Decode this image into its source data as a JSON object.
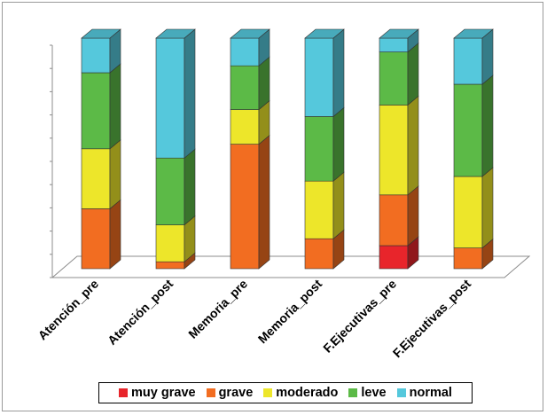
{
  "chart_data": {
    "type": "bar",
    "stacked": true,
    "percent_stacked": true,
    "three_d": true,
    "categories": [
      "Atención_pre",
      "Atención_post",
      "Memoria_pre",
      "Memoria_post",
      "F.Ejecutivas_pre",
      "F.Ejecutivas_post"
    ],
    "series": [
      {
        "name": "muy grave",
        "color": "#e8252b",
        "values": [
          0,
          0,
          0,
          0,
          10,
          0
        ]
      },
      {
        "name": "grave",
        "color": "#f26d21",
        "values": [
          26,
          3,
          54,
          13,
          22,
          9
        ]
      },
      {
        "name": "moderado",
        "color": "#ede62a",
        "values": [
          26,
          16,
          15,
          25,
          39,
          31
        ]
      },
      {
        "name": "leve",
        "color": "#5cba47",
        "values": [
          33,
          29,
          19,
          28,
          23,
          40
        ]
      },
      {
        "name": "normal",
        "color": "#55c8dc",
        "values": [
          15,
          52,
          12,
          34,
          6,
          20
        ]
      }
    ],
    "ylim": [
      0,
      100
    ],
    "legend_position": "bottom",
    "grid": false
  }
}
